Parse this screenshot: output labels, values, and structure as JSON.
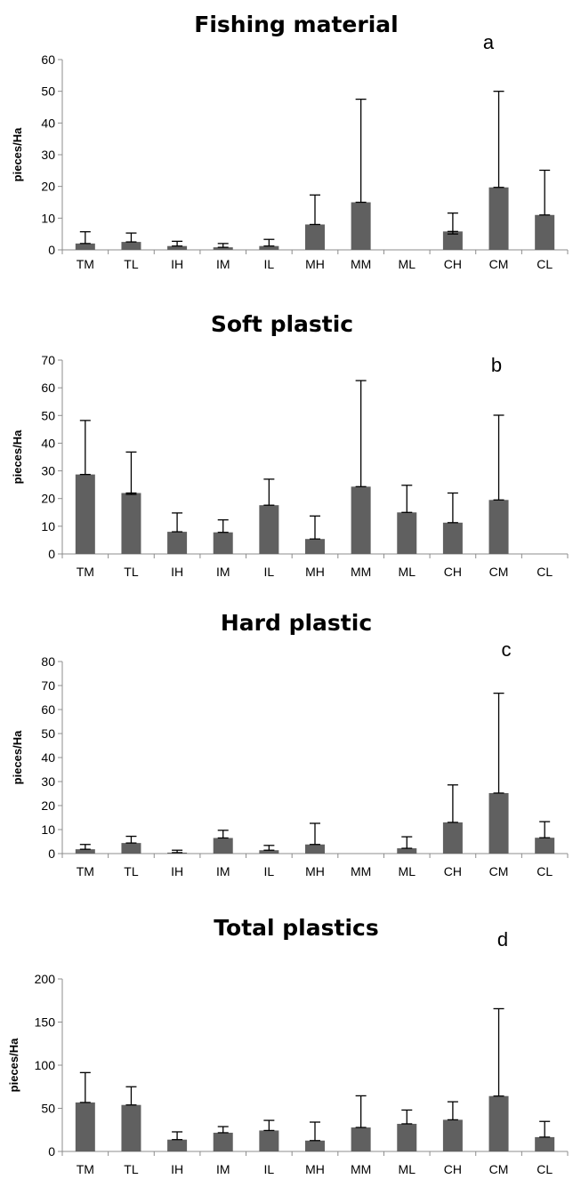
{
  "chart_data": [
    {
      "type": "bar",
      "title": "Fishing  material",
      "panel_label": "a",
      "ylabel": "pieces/Ha",
      "xlabel": "",
      "ylim": [
        0,
        60
      ],
      "yticks": [
        0,
        10,
        20,
        30,
        40,
        50,
        60
      ],
      "categories": [
        "TM",
        "TL",
        "IH",
        "IM",
        "IL",
        "MH",
        "MM",
        "ML",
        "CH",
        "CM",
        "CL"
      ],
      "values": [
        2,
        2.5,
        1.2,
        0.8,
        1.2,
        8,
        15,
        0,
        5.8,
        19.7,
        11
      ],
      "error_upper": [
        5.7,
        5.3,
        2.7,
        2,
        3.3,
        17.3,
        47.5,
        0,
        11.6,
        50,
        25.1
      ],
      "error_lower": [
        0,
        0,
        0,
        0,
        0,
        0,
        0,
        0,
        5,
        0,
        0
      ],
      "bar_color": "#606060",
      "grid": false
    },
    {
      "type": "bar",
      "title": "Soft plastic",
      "panel_label": "b",
      "ylabel": "pieces/Ha",
      "xlabel": "",
      "ylim": [
        0,
        70
      ],
      "yticks": [
        0,
        10,
        20,
        30,
        40,
        50,
        60,
        70
      ],
      "categories": [
        "TM",
        "TL",
        "IH",
        "IM",
        "IL",
        "MH",
        "MM",
        "ML",
        "CH",
        "CM",
        "CL"
      ],
      "values": [
        28.7,
        22,
        8,
        7.8,
        17.6,
        5.4,
        24.3,
        15,
        11.3,
        19.5,
        0
      ],
      "error_upper": [
        48.2,
        36.8,
        14.8,
        12.3,
        27,
        13.7,
        62.6,
        24.8,
        22,
        50.1,
        0
      ],
      "error_lower": [
        0,
        21.5,
        0,
        0,
        0,
        0,
        0,
        0,
        0,
        0,
        0
      ],
      "bar_color": "#606060",
      "grid": false
    },
    {
      "type": "bar",
      "title": "Hard plastic",
      "panel_label": "c",
      "ylabel": "pieces/Ha",
      "xlabel": "",
      "ylim": [
        0,
        80
      ],
      "yticks": [
        0,
        10,
        20,
        30,
        40,
        50,
        60,
        70,
        80
      ],
      "categories": [
        "TM",
        "TL",
        "IH",
        "IM",
        "IL",
        "MH",
        "MM",
        "ML",
        "CH",
        "CM",
        "CL"
      ],
      "values": [
        1.8,
        4.4,
        0.4,
        6.5,
        1.4,
        3.8,
        0,
        2.2,
        13,
        25.2,
        6.6
      ],
      "error_upper": [
        3.8,
        7.2,
        1.4,
        9.7,
        3.4,
        12.6,
        0,
        7,
        28.6,
        66.8,
        13.3
      ],
      "error_lower": [
        0,
        0,
        0,
        0,
        0,
        0,
        0,
        0,
        0,
        0,
        0
      ],
      "bar_color": "#606060",
      "grid": false
    },
    {
      "type": "bar",
      "title": "Total plastics",
      "panel_label": "d",
      "ylabel": "pieces/Ha",
      "xlabel": "",
      "ylim": [
        0,
        200
      ],
      "yticks": [
        0,
        50,
        100,
        150,
        200
      ],
      "categories": [
        "TM",
        "TL",
        "IH",
        "IM",
        "IL",
        "MH",
        "MM",
        "ML",
        "CH",
        "CM",
        "CL"
      ],
      "values": [
        56.8,
        53.9,
        13.7,
        21.7,
        24.3,
        12.6,
        27.8,
        32,
        36.7,
        64.2,
        16.6
      ],
      "error_upper": [
        91.4,
        75,
        22.7,
        28.8,
        36,
        34,
        64.5,
        48,
        57.6,
        165.5,
        34.8
      ],
      "error_lower": [
        0,
        0,
        0,
        0,
        0,
        0,
        0,
        0,
        0,
        0,
        0
      ],
      "bar_color": "#606060",
      "grid": false
    }
  ]
}
